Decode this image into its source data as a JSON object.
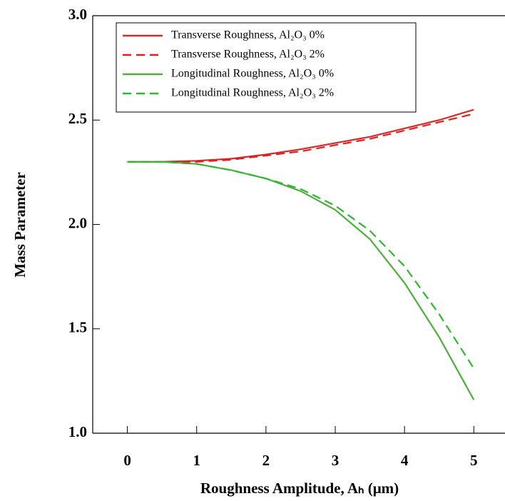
{
  "chart_data": {
    "type": "line",
    "x_label": "Roughness Amplitude, Aₕ (μm)",
    "y_label": "Mass Parameter",
    "x": [
      0,
      0.5,
      1,
      1.5,
      2,
      2.5,
      3,
      3.5,
      4,
      4.5,
      5
    ],
    "series": [
      {
        "name": "Transverse Roughness, Al₂O₃ 0%",
        "color": "#d42a2a",
        "dashed": false,
        "values": [
          2.3,
          2.3,
          2.305,
          2.315,
          2.335,
          2.36,
          2.39,
          2.42,
          2.46,
          2.5,
          2.55
        ]
      },
      {
        "name": "Transverse Roughness, Al₂O₃  2%",
        "color": "#e02020",
        "dashed": true,
        "values": [
          2.3,
          2.3,
          2.3,
          2.31,
          2.33,
          2.35,
          2.38,
          2.41,
          2.45,
          2.49,
          2.53
        ]
      },
      {
        "name": "Longitudinal Roughness, Al₂O₃  0%",
        "color": "#4caf3c",
        "dashed": false,
        "values": [
          2.3,
          2.3,
          2.29,
          2.26,
          2.22,
          2.16,
          2.07,
          1.93,
          1.72,
          1.46,
          1.16
        ]
      },
      {
        "name": "Longitudinal Roughness, Al₂O₃ 2%",
        "color": "#2db82d",
        "dashed": true,
        "values": [
          2.3,
          2.3,
          2.29,
          2.26,
          2.22,
          2.17,
          2.09,
          1.97,
          1.8,
          1.57,
          1.31
        ]
      }
    ],
    "xlim": [
      -0.5,
      5.45
    ],
    "xticks": [
      0,
      1,
      2,
      3,
      4,
      5
    ],
    "ylim": [
      1.0,
      3.0
    ],
    "yticks": [
      {
        "value": 1,
        "label": "1.0"
      },
      {
        "value": 1.5,
        "label": "1.5"
      },
      {
        "value": 2,
        "label": "2.0"
      },
      {
        "value": 2.5,
        "label": "2.5"
      },
      {
        "value": 3,
        "label": "3.0"
      }
    ],
    "legend": "upper-left"
  }
}
